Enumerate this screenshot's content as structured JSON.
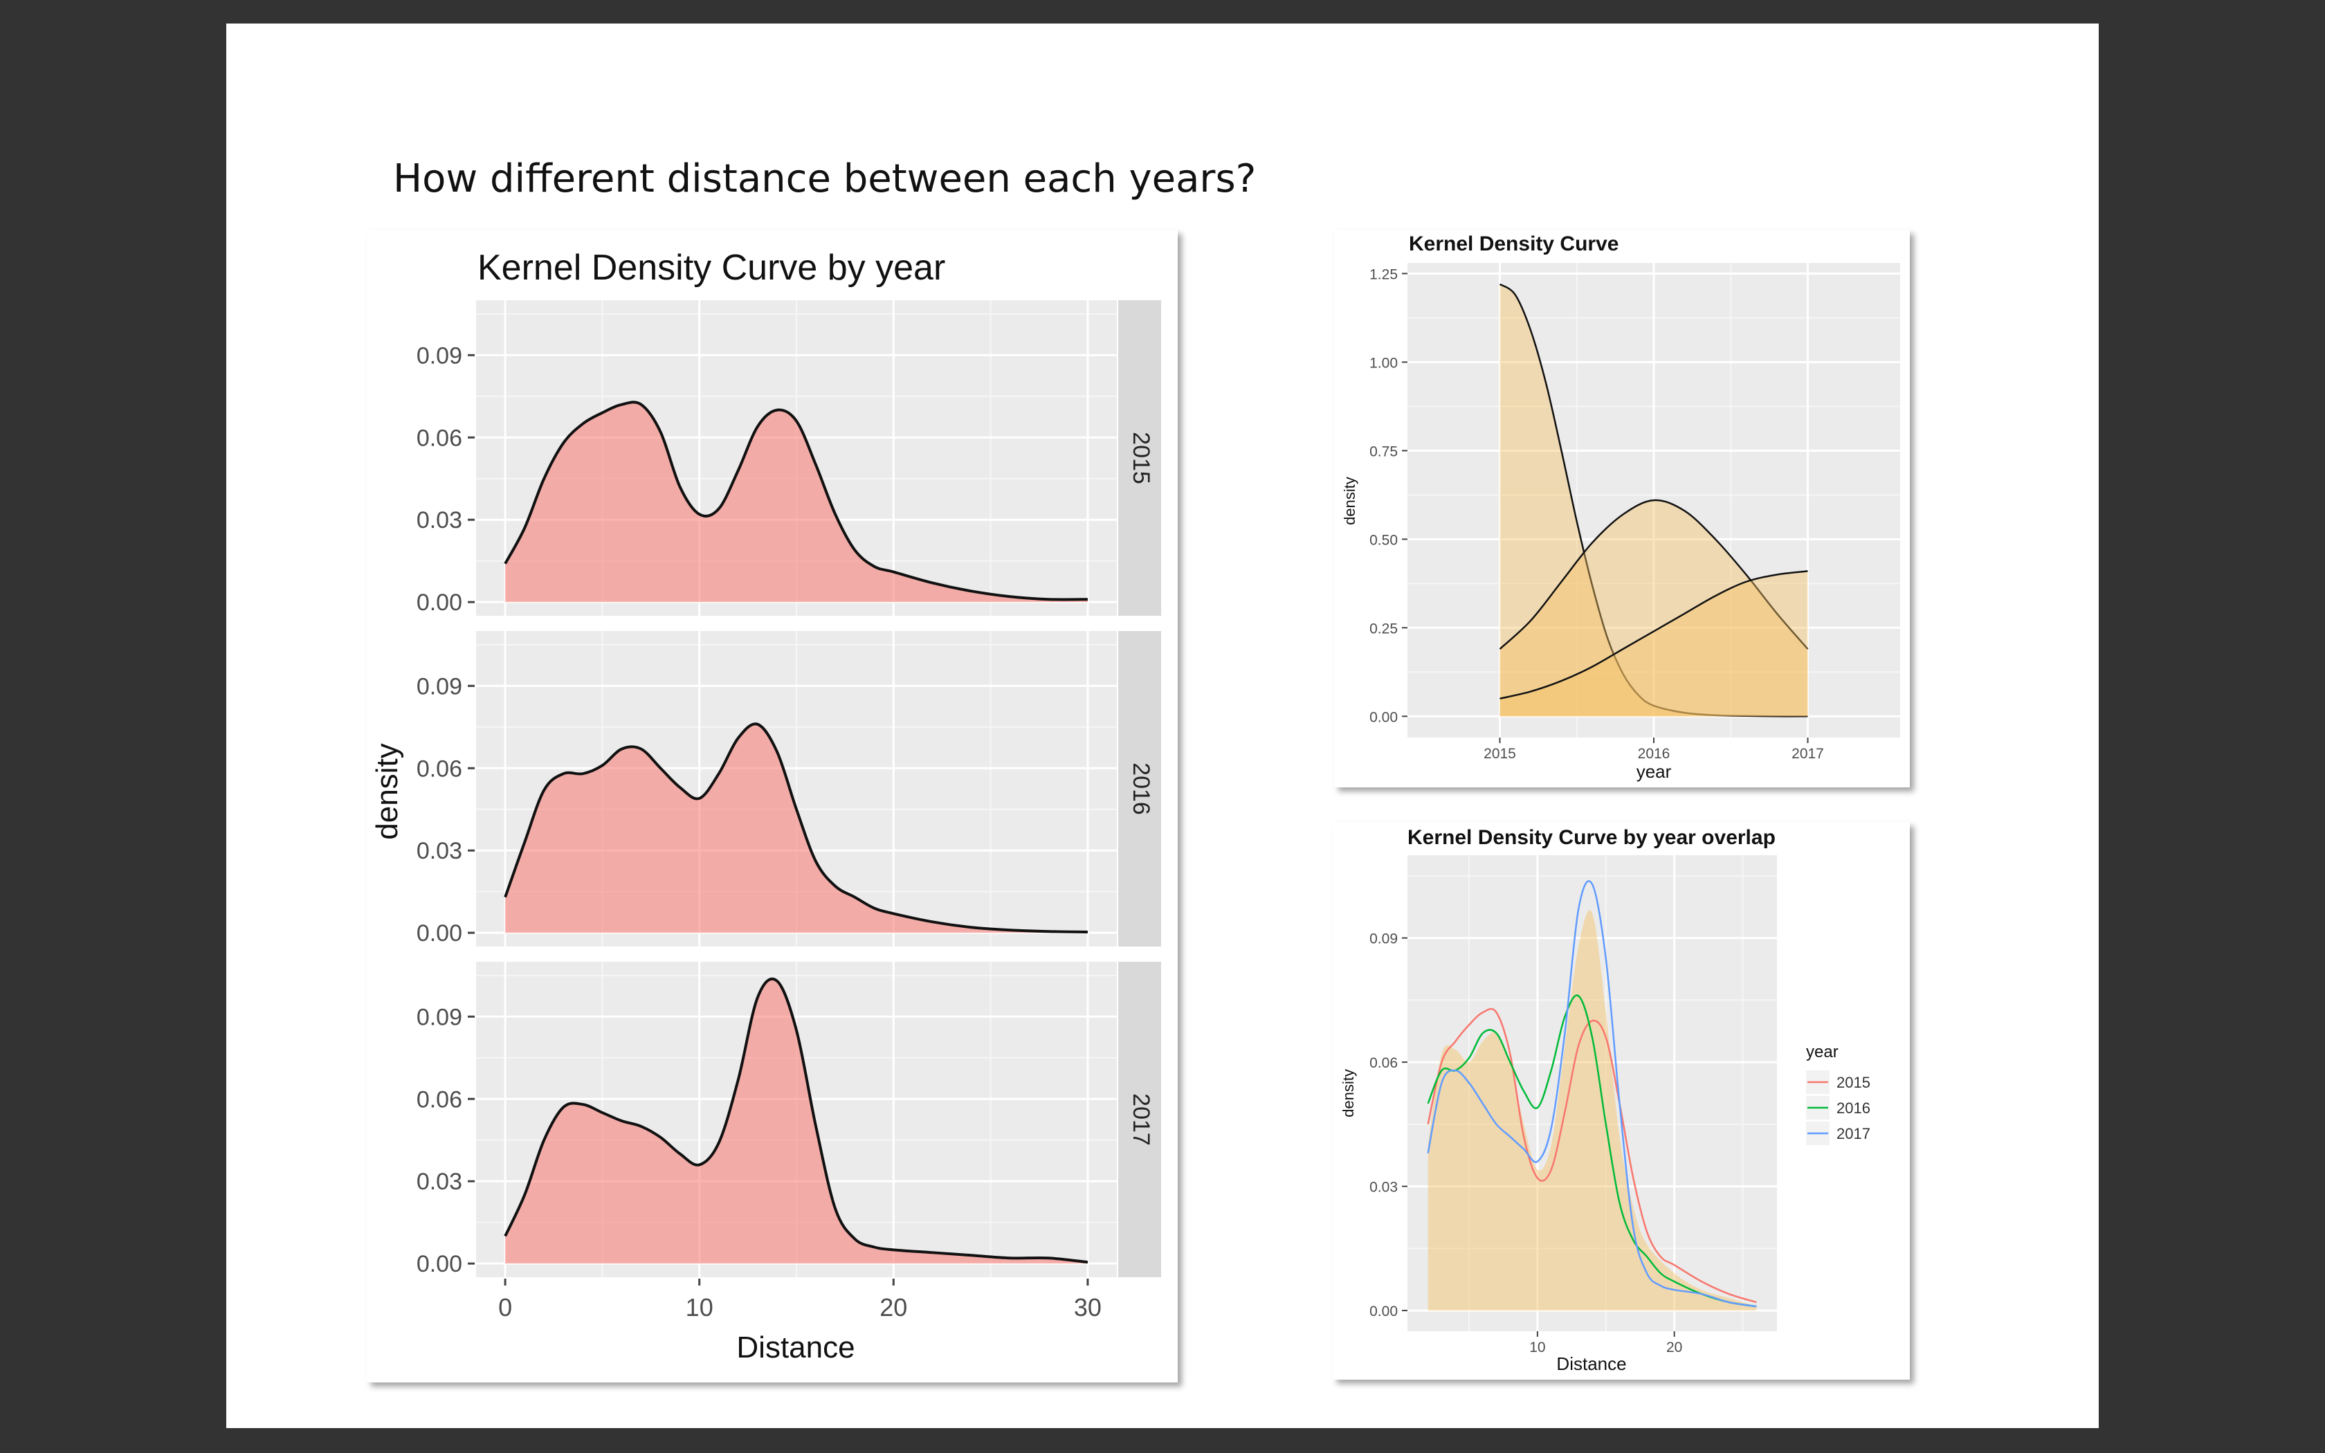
{
  "slide": {
    "title": "How different distance between each years?"
  },
  "colors": {
    "background": "#333333",
    "panel_bg": "#EBEBEB",
    "grid": "#FFFFFF",
    "strip": "#D9D9D9",
    "facet_fill": "#F8766D",
    "density_fill": "#F5C163",
    "series_2015": "#F8766D",
    "series_2016": "#00BA38",
    "series_2017": "#619CFF"
  },
  "chart_data": [
    {
      "type": "area",
      "title": "Kernel Density Curve by year",
      "xlabel": "Distance",
      "ylabel": "density",
      "xlim": [
        -1.5,
        31.5
      ],
      "ylim": [
        -0.005,
        0.11
      ],
      "xticks": [
        "0",
        "10",
        "20",
        "30"
      ],
      "yticks": [
        "0.00",
        "0.03",
        "0.06",
        "0.09"
      ],
      "facets": [
        "2015",
        "2016",
        "2017"
      ],
      "series": [
        {
          "name": "2015",
          "x": [
            0,
            1,
            2,
            3,
            4,
            5,
            6,
            7,
            8,
            9,
            10,
            11,
            12,
            13,
            14,
            15,
            16,
            17,
            18,
            19,
            20,
            22,
            24,
            26,
            28,
            30
          ],
          "values": [
            0.014,
            0.027,
            0.045,
            0.058,
            0.065,
            0.069,
            0.072,
            0.072,
            0.062,
            0.042,
            0.032,
            0.034,
            0.048,
            0.064,
            0.07,
            0.066,
            0.05,
            0.032,
            0.019,
            0.013,
            0.011,
            0.007,
            0.004,
            0.002,
            0.001,
            0.001
          ]
        },
        {
          "name": "2016",
          "x": [
            0,
            1,
            2,
            3,
            4,
            5,
            6,
            7,
            8,
            9,
            10,
            11,
            12,
            13,
            14,
            15,
            16,
            17,
            18,
            19,
            20,
            22,
            24,
            26,
            28,
            30
          ],
          "values": [
            0.013,
            0.033,
            0.052,
            0.058,
            0.058,
            0.061,
            0.067,
            0.067,
            0.06,
            0.053,
            0.049,
            0.058,
            0.071,
            0.076,
            0.066,
            0.045,
            0.026,
            0.017,
            0.013,
            0.009,
            0.007,
            0.004,
            0.002,
            0.001,
            0.0005,
            0.0003
          ]
        },
        {
          "name": "2017",
          "x": [
            0,
            1,
            2,
            3,
            4,
            5,
            6,
            7,
            8,
            9,
            10,
            11,
            12,
            13,
            14,
            15,
            16,
            17,
            18,
            19,
            20,
            22,
            24,
            26,
            28,
            30
          ],
          "values": [
            0.01,
            0.025,
            0.045,
            0.057,
            0.058,
            0.055,
            0.052,
            0.05,
            0.046,
            0.04,
            0.036,
            0.044,
            0.067,
            0.097,
            0.103,
            0.085,
            0.05,
            0.02,
            0.009,
            0.006,
            0.005,
            0.004,
            0.003,
            0.002,
            0.002,
            0.0005
          ]
        }
      ]
    },
    {
      "type": "area",
      "title": "Kernel Density Curve",
      "xlabel": "year",
      "ylabel": "density",
      "xlim": [
        2014.4,
        2017.6
      ],
      "ylim": [
        -0.06,
        1.28
      ],
      "xticks": [
        "2015",
        "2016",
        "2017"
      ],
      "yticks": [
        "0.00",
        "0.25",
        "0.50",
        "0.75",
        "1.00",
        "1.25"
      ],
      "series": [
        {
          "x": [
            2015,
            2015.1,
            2015.2,
            2015.3,
            2015.4,
            2015.5,
            2015.6,
            2015.7,
            2015.8,
            2015.9,
            2016,
            2016.2,
            2016.4,
            2016.6,
            2016.8,
            2017
          ],
          "values": [
            1.22,
            1.19,
            1.09,
            0.94,
            0.75,
            0.55,
            0.37,
            0.22,
            0.12,
            0.06,
            0.03,
            0.01,
            0.003,
            0.001,
            0.0,
            0.0
          ]
        },
        {
          "x": [
            2015,
            2015.2,
            2015.4,
            2015.6,
            2015.8,
            2016,
            2016.2,
            2016.4,
            2016.6,
            2016.8,
            2017
          ],
          "values": [
            0.19,
            0.27,
            0.38,
            0.49,
            0.57,
            0.61,
            0.58,
            0.5,
            0.4,
            0.29,
            0.19
          ]
        },
        {
          "x": [
            2015,
            2015.2,
            2015.4,
            2015.6,
            2015.8,
            2016,
            2016.2,
            2016.4,
            2016.6,
            2016.8,
            2017
          ],
          "values": [
            0.05,
            0.07,
            0.1,
            0.14,
            0.19,
            0.24,
            0.29,
            0.34,
            0.38,
            0.4,
            0.41
          ]
        }
      ]
    },
    {
      "type": "line",
      "title": "Kernel Density Curve by year overlap",
      "xlabel": "Distance",
      "ylabel": "density",
      "xlim": [
        0.5,
        27.5
      ],
      "ylim": [
        -0.005,
        0.11
      ],
      "xticks": [
        "10",
        "20"
      ],
      "yticks": [
        "0.00",
        "0.03",
        "0.06",
        "0.09"
      ],
      "legend_title": "year",
      "legend_position": "right",
      "area": {
        "x": [
          2,
          3,
          4,
          5,
          6,
          7,
          8,
          9,
          10,
          11,
          12,
          13,
          14,
          15,
          16,
          17,
          18,
          20,
          22,
          24,
          26
        ],
        "values": [
          0.04,
          0.062,
          0.063,
          0.06,
          0.065,
          0.067,
          0.06,
          0.045,
          0.034,
          0.04,
          0.064,
          0.088,
          0.096,
          0.072,
          0.042,
          0.025,
          0.016,
          0.009,
          0.005,
          0.003,
          0.001
        ]
      },
      "series": [
        {
          "name": "2015",
          "x": [
            2,
            3,
            4,
            5,
            6,
            7,
            8,
            9,
            10,
            11,
            12,
            13,
            14,
            15,
            16,
            17,
            18,
            19,
            20,
            22,
            24,
            26
          ],
          "values": [
            0.045,
            0.06,
            0.065,
            0.069,
            0.072,
            0.072,
            0.062,
            0.042,
            0.032,
            0.034,
            0.048,
            0.064,
            0.07,
            0.066,
            0.05,
            0.032,
            0.019,
            0.013,
            0.011,
            0.007,
            0.004,
            0.002
          ]
        },
        {
          "name": "2016",
          "x": [
            2,
            3,
            4,
            5,
            6,
            7,
            8,
            9,
            10,
            11,
            12,
            13,
            14,
            15,
            16,
            17,
            18,
            19,
            20,
            22,
            24,
            26
          ],
          "values": [
            0.05,
            0.058,
            0.058,
            0.061,
            0.067,
            0.067,
            0.06,
            0.053,
            0.049,
            0.058,
            0.071,
            0.076,
            0.066,
            0.045,
            0.026,
            0.017,
            0.013,
            0.009,
            0.007,
            0.004,
            0.002,
            0.001
          ]
        },
        {
          "name": "2017",
          "x": [
            2,
            3,
            4,
            5,
            6,
            7,
            8,
            9,
            10,
            11,
            12,
            13,
            14,
            15,
            16,
            17,
            18,
            19,
            20,
            22,
            24,
            26
          ],
          "values": [
            0.038,
            0.055,
            0.058,
            0.055,
            0.05,
            0.045,
            0.042,
            0.039,
            0.036,
            0.044,
            0.067,
            0.097,
            0.103,
            0.085,
            0.05,
            0.02,
            0.009,
            0.006,
            0.005,
            0.004,
            0.002,
            0.001
          ]
        }
      ]
    }
  ]
}
